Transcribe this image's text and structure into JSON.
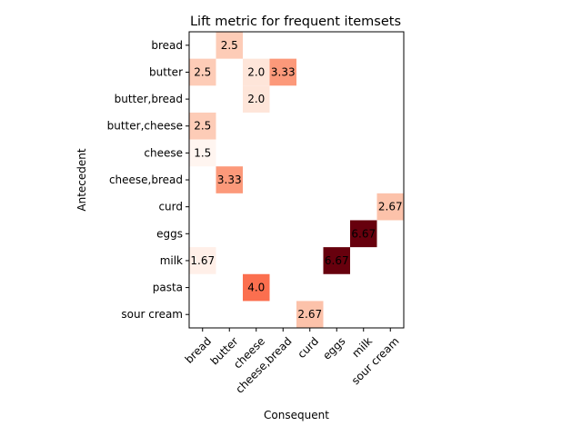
{
  "chart_data": {
    "type": "heatmap",
    "title": "Lift metric for frequent itemsets",
    "xlabel": "Consequent",
    "ylabel": "Antecedent",
    "x_categories": [
      "bread",
      "butter",
      "cheese",
      "cheese,bread",
      "curd",
      "eggs",
      "milk",
      "sour cream"
    ],
    "y_categories": [
      "bread",
      "butter",
      "butter,bread",
      "butter,cheese",
      "cheese",
      "cheese,bread",
      "curd",
      "eggs",
      "milk",
      "pasta",
      "sour cream"
    ],
    "colormap": "Reds",
    "value_range": [
      1.5,
      6.67
    ],
    "cells": [
      {
        "antecedent": "bread",
        "consequent": "butter",
        "value": 2.5,
        "label": "2.5"
      },
      {
        "antecedent": "butter",
        "consequent": "bread",
        "value": 2.5,
        "label": "2.5"
      },
      {
        "antecedent": "butter",
        "consequent": "cheese",
        "value": 2.0,
        "label": "2.0"
      },
      {
        "antecedent": "butter",
        "consequent": "cheese,bread",
        "value": 3.33,
        "label": "3.33"
      },
      {
        "antecedent": "butter,bread",
        "consequent": "cheese",
        "value": 2.0,
        "label": "2.0"
      },
      {
        "antecedent": "butter,cheese",
        "consequent": "bread",
        "value": 2.5,
        "label": "2.5"
      },
      {
        "antecedent": "cheese",
        "consequent": "bread",
        "value": 1.5,
        "label": "1.5"
      },
      {
        "antecedent": "cheese,bread",
        "consequent": "butter",
        "value": 3.33,
        "label": "3.33"
      },
      {
        "antecedent": "curd",
        "consequent": "sour cream",
        "value": 2.67,
        "label": "2.67"
      },
      {
        "antecedent": "eggs",
        "consequent": "milk",
        "value": 6.67,
        "label": "6.67"
      },
      {
        "antecedent": "milk",
        "consequent": "bread",
        "value": 1.67,
        "label": "1.67"
      },
      {
        "antecedent": "milk",
        "consequent": "eggs",
        "value": 6.67,
        "label": "6.67"
      },
      {
        "antecedent": "pasta",
        "consequent": "cheese",
        "value": 4.0,
        "label": "4.0"
      },
      {
        "antecedent": "sour cream",
        "consequent": "curd",
        "value": 2.67,
        "label": "2.67"
      }
    ],
    "grid": false,
    "legend": "none"
  }
}
